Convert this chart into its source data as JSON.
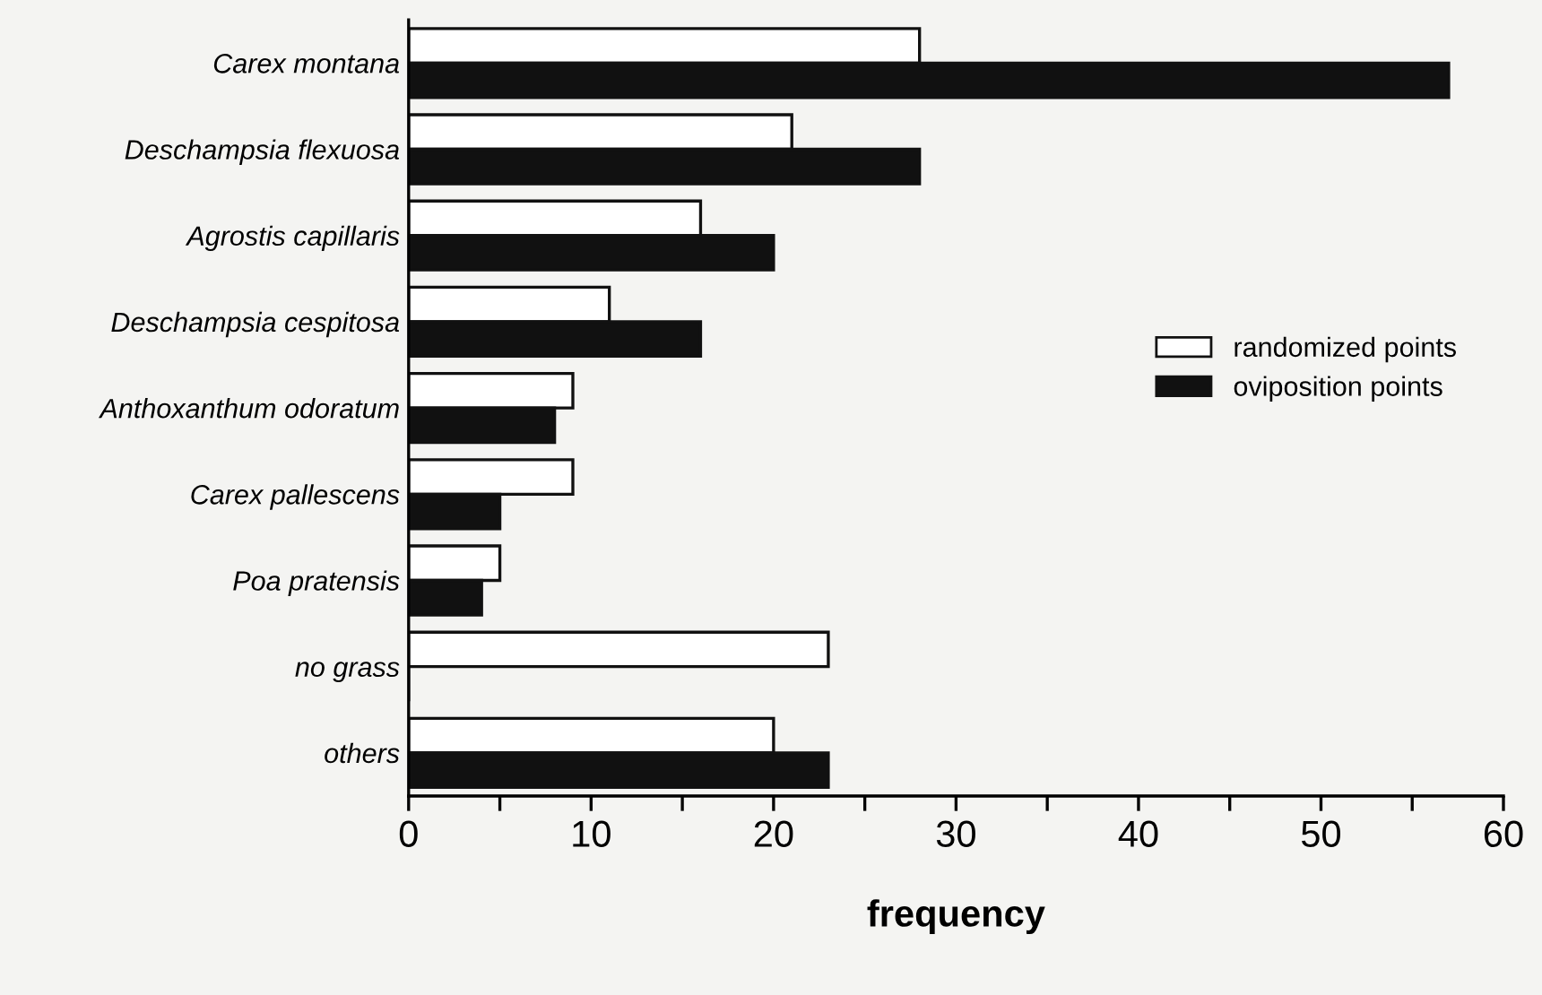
{
  "chart_data": {
    "type": "bar",
    "orientation": "horizontal",
    "xlabel": "frequency",
    "categories": [
      "Carex montana",
      "Deschampsia flexuosa",
      "Agrostis capillaris",
      "Deschampsia cespitosa",
      "Anthoxanthum odoratum",
      "Carex pallescens",
      "Poa pratensis",
      "no grass",
      "others"
    ],
    "series": [
      {
        "name": "randomized points",
        "color": "#ffffff",
        "values": [
          28,
          21,
          16,
          11,
          9,
          9,
          5,
          23,
          20
        ]
      },
      {
        "name": "oviposition points",
        "color": "#111111",
        "values": [
          57,
          28,
          20,
          16,
          8,
          5,
          4,
          0,
          23
        ]
      }
    ],
    "xlim": [
      0,
      60
    ],
    "xticks": [
      0,
      {
        "value": 5,
        "label": null
      },
      10,
      {
        "value": 15,
        "label": null
      },
      20,
      {
        "value": 25,
        "label": null
      },
      30,
      {
        "value": 35,
        "label": null
      },
      40,
      {
        "value": 45,
        "label": null
      },
      50,
      {
        "value": 55,
        "label": null
      },
      60
    ],
    "legend": "right",
    "grid": false
  }
}
